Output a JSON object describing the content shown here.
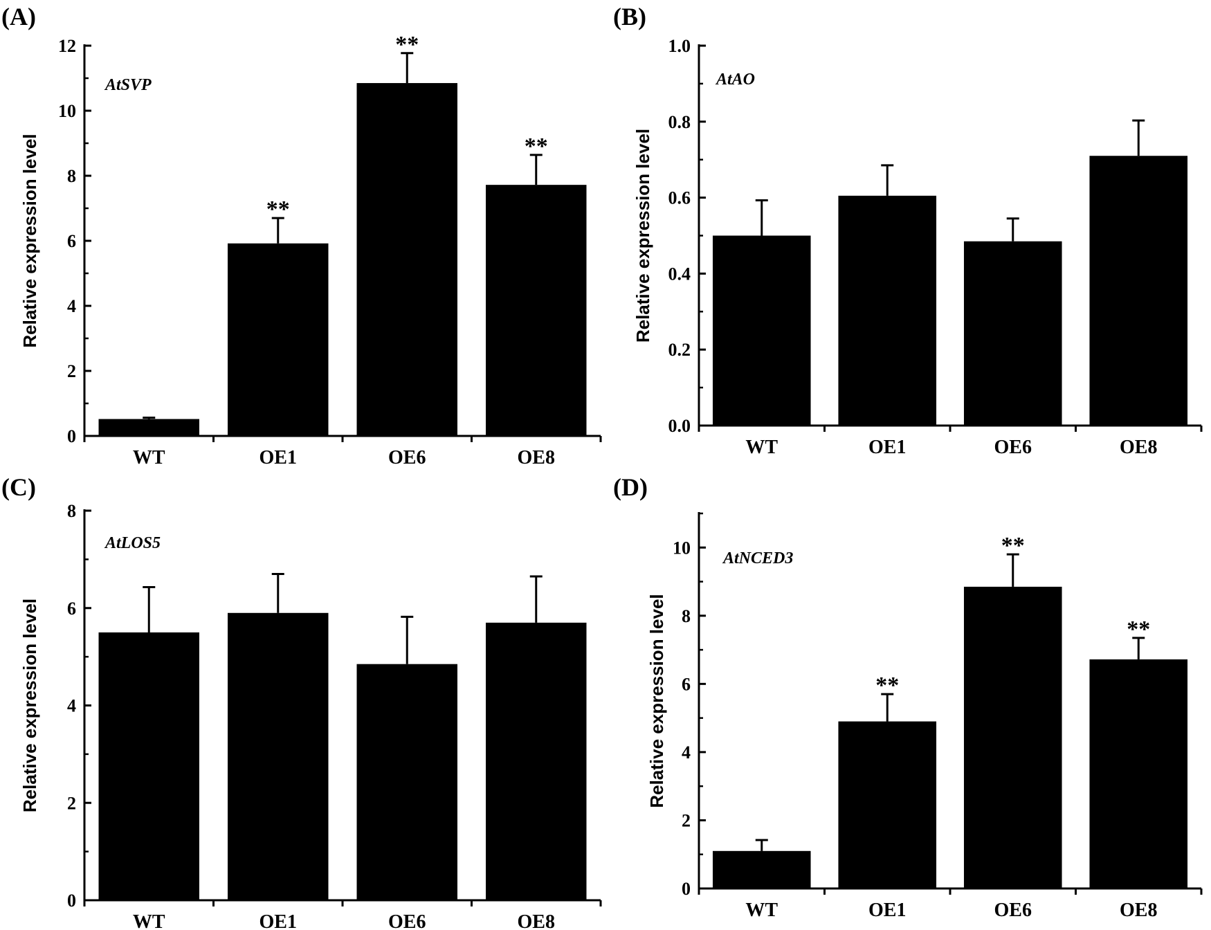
{
  "colors": {
    "bar": "#000000",
    "axis": "#000000",
    "background": "#ffffff"
  },
  "chart_data": [
    {
      "type": "bar",
      "panel": "(A)",
      "title": "AtSVP",
      "xlabel": "",
      "ylabel": "Relative expression level",
      "categories": [
        "WT",
        "OE1",
        "OE6",
        "OE8"
      ],
      "values": [
        0.52,
        5.92,
        10.85,
        7.72
      ],
      "errors": [
        0.04,
        0.78,
        0.92,
        0.92
      ],
      "significance": [
        "",
        "**",
        "**",
        "**"
      ],
      "ylim": [
        0,
        12
      ],
      "yticks": [
        0,
        2,
        4,
        6,
        8,
        10,
        12
      ],
      "ytick_labels": [
        "0",
        "2",
        "4",
        "6",
        "8",
        "10",
        "12"
      ],
      "yminor": 1
    },
    {
      "type": "bar",
      "panel": "(B)",
      "title": "AtAO",
      "xlabel": "",
      "ylabel": "Relative expression level",
      "categories": [
        "WT",
        "OE1",
        "OE6",
        "OE8"
      ],
      "values": [
        0.5,
        0.605,
        0.485,
        0.71
      ],
      "errors": [
        0.093,
        0.08,
        0.06,
        0.093
      ],
      "significance": [
        "",
        "",
        "",
        ""
      ],
      "ylim": [
        0,
        1.0
      ],
      "yticks": [
        0,
        0.2,
        0.4,
        0.6,
        0.8,
        1.0
      ],
      "ytick_labels": [
        "0.0",
        "0.2",
        "0.4",
        "0.6",
        "0.8",
        "1.0"
      ],
      "yminor": 0.1
    },
    {
      "type": "bar",
      "panel": "(C)",
      "title": "AtLOS5",
      "xlabel": "",
      "ylabel": "Relative expression level",
      "categories": [
        "WT",
        "OE1",
        "OE6",
        "OE8"
      ],
      "values": [
        5.5,
        5.9,
        4.85,
        5.7
      ],
      "errors": [
        0.93,
        0.8,
        0.97,
        0.95
      ],
      "significance": [
        "",
        "",
        "",
        ""
      ],
      "ylim": [
        0,
        8
      ],
      "yticks": [
        0,
        2,
        4,
        6,
        8
      ],
      "ytick_labels": [
        "0",
        "2",
        "4",
        "6",
        "8"
      ],
      "yminor": 1
    },
    {
      "type": "bar",
      "panel": "(D)",
      "title": "AtNCED3",
      "xlabel": "",
      "ylabel": "Relative expression level",
      "categories": [
        "WT",
        "OE1",
        "OE6",
        "OE8"
      ],
      "values": [
        1.1,
        4.9,
        8.85,
        6.72
      ],
      "errors": [
        0.32,
        0.8,
        0.95,
        0.63
      ],
      "significance": [
        "",
        "**",
        "**",
        "**"
      ],
      "ylim": [
        0,
        11
      ],
      "yticks": [
        0,
        2,
        4,
        6,
        8,
        10
      ],
      "ytick_labels": [
        "0",
        "2",
        "4",
        "6",
        "8",
        "10"
      ],
      "yminor": 1
    }
  ]
}
